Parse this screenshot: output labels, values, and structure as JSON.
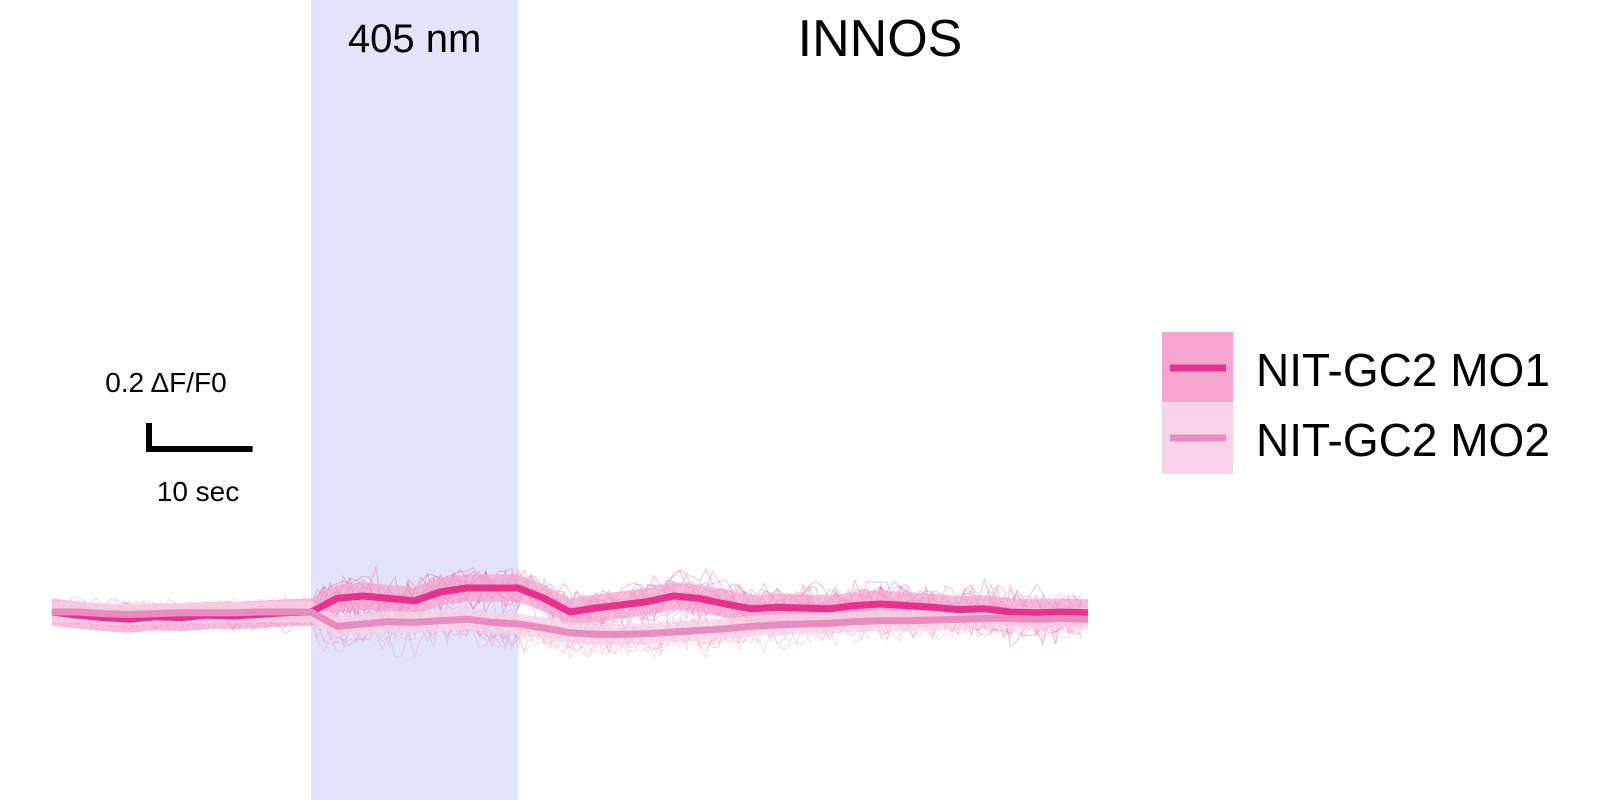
{
  "chart_data": {
    "type": "line",
    "title": "INNOS",
    "xlabel": "",
    "ylabel": "",
    "stimulus": {
      "label": "405 nm",
      "color": "#e3e3fc",
      "start_s": 25,
      "end_s": 45
    },
    "x_range_s": [
      0,
      100
    ],
    "scale_bar": {
      "y_label": "0.2 ΔF/F0",
      "x_label": "10 sec",
      "x_value_s": 10,
      "y_value_dff": 0.2
    },
    "time_s": [
      0,
      2.5,
      5,
      7.5,
      10,
      12.5,
      15,
      17.5,
      20,
      22.5,
      25,
      27.5,
      30,
      32.5,
      35,
      37.5,
      40,
      42.5,
      45,
      47.5,
      50,
      52.5,
      55,
      57.5,
      60,
      62.5,
      65,
      67.5,
      70,
      72.5,
      75,
      77.5,
      80,
      82.5,
      85,
      87.5,
      90,
      92.5,
      95,
      97.5,
      100
    ],
    "series": [
      {
        "name": "NIT-GC2 MO1",
        "color": "#e8318f",
        "band_color": "#f4a6cf",
        "mean": [
          0,
          -0.004,
          -0.007,
          -0.009,
          -0.006,
          -0.007,
          -0.004,
          -0.005,
          -0.003,
          -0.001,
          0.0,
          0.017,
          0.02,
          0.017,
          0.014,
          0.025,
          0.03,
          0.03,
          0.03,
          0.017,
          0.0,
          0.005,
          0.009,
          0.013,
          0.02,
          0.017,
          0.01,
          0.004,
          0.006,
          0.005,
          0.004,
          0.008,
          0.01,
          0.008,
          0.006,
          0.003,
          0.004,
          0.0,
          -0.001,
          0.0,
          -0.001
        ],
        "sem": 0.017
      },
      {
        "name": "NIT-GC2 MO2",
        "color": "#e88cc0",
        "band_color": "#f6d3e6",
        "mean": [
          0,
          0.0,
          -0.002,
          -0.003,
          -0.002,
          -0.001,
          -0.001,
          -0.001,
          0.0,
          0.0,
          0.0,
          -0.018,
          -0.015,
          -0.012,
          -0.013,
          -0.011,
          -0.009,
          -0.013,
          -0.015,
          -0.02,
          -0.026,
          -0.028,
          -0.028,
          -0.027,
          -0.025,
          -0.023,
          -0.021,
          -0.018,
          -0.016,
          -0.015,
          -0.014,
          -0.012,
          -0.011,
          -0.011,
          -0.01,
          -0.009,
          -0.008,
          -0.008,
          -0.009,
          -0.008,
          -0.009
        ],
        "sem": 0.013
      }
    ],
    "legend_position": "right",
    "grid": false
  }
}
